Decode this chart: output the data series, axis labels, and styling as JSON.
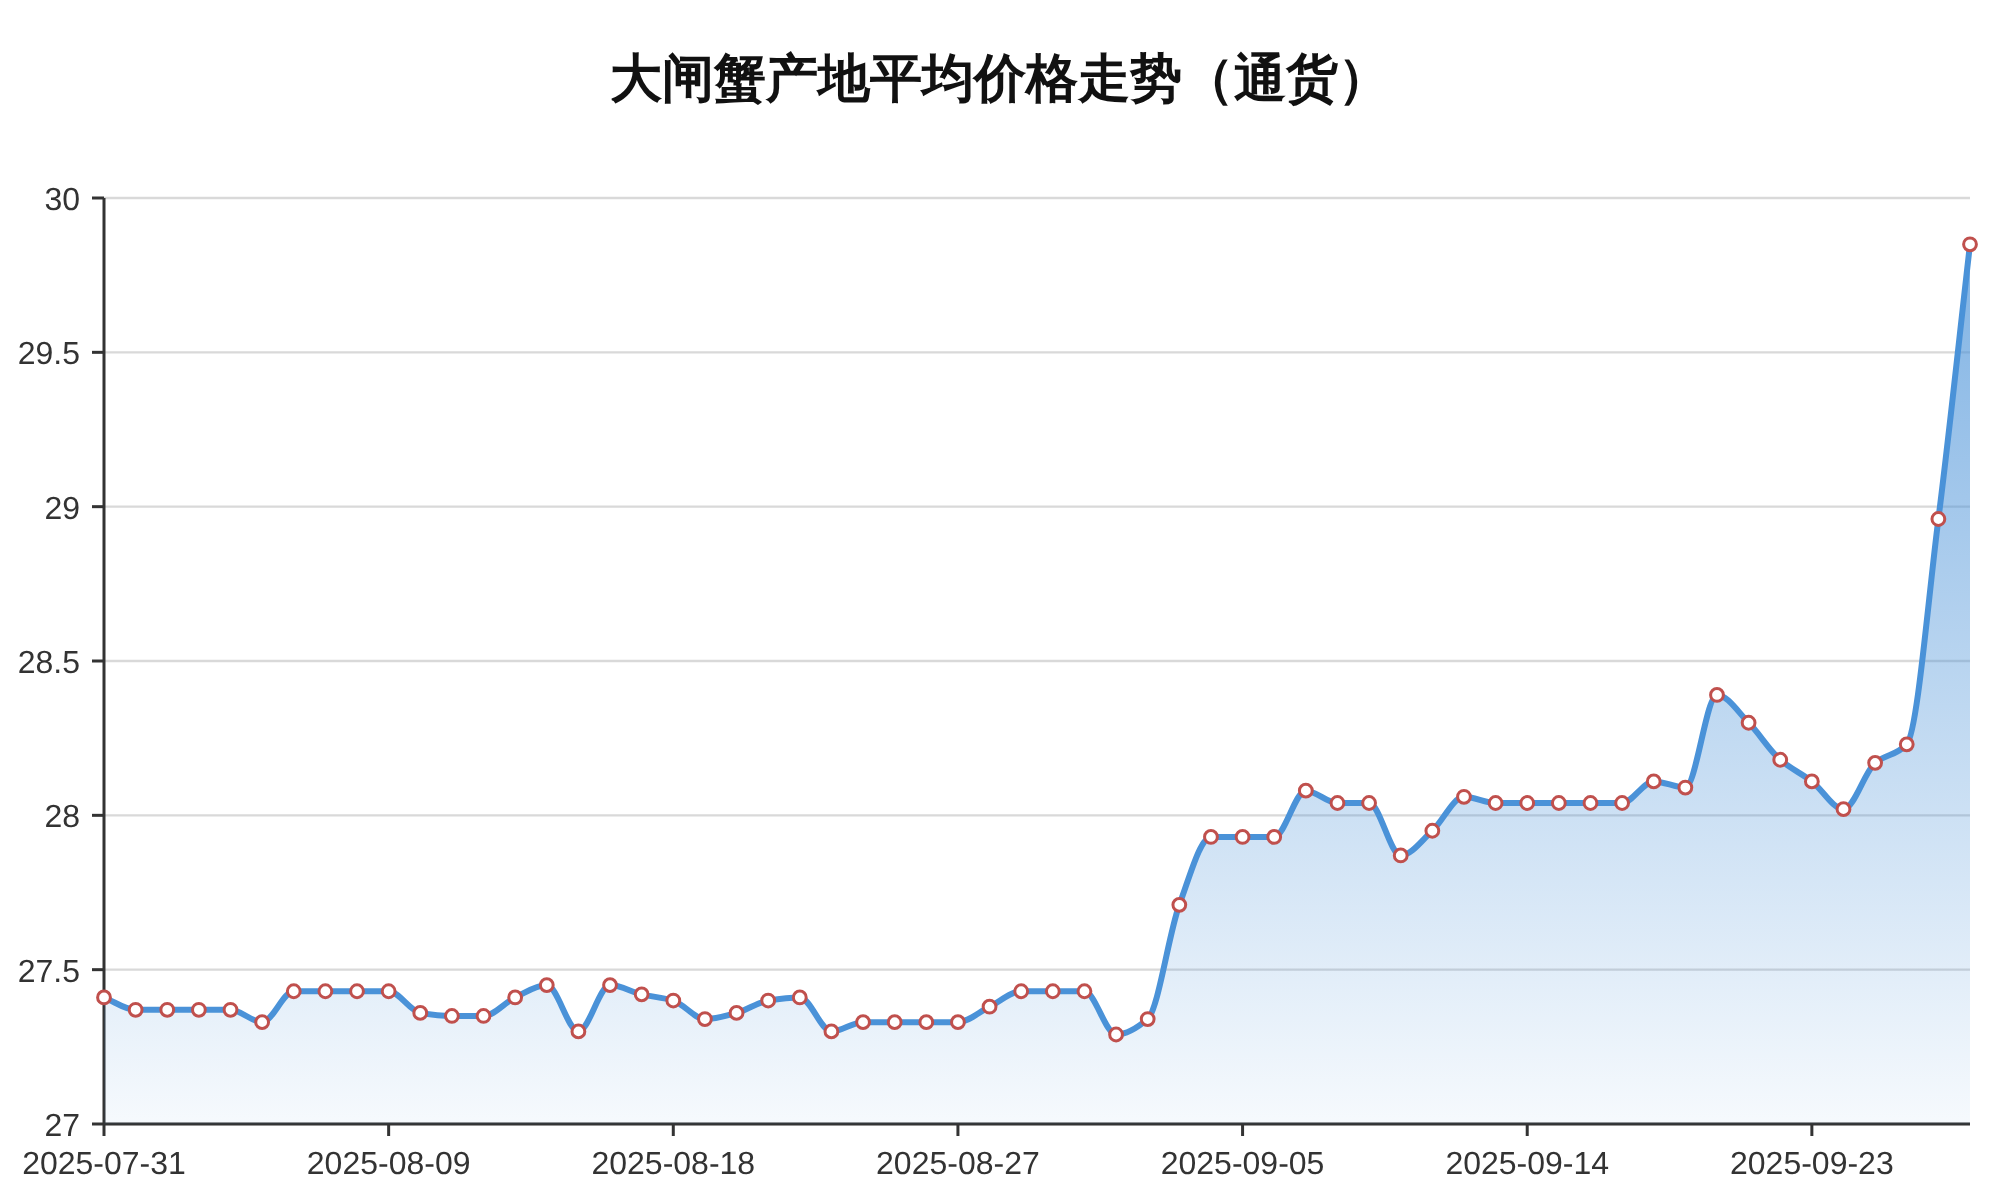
{
  "chart_data": {
    "type": "area",
    "title": "大闸蟹产地平均价格走势（通货）",
    "x": [
      "2025-07-31",
      "2025-08-01",
      "2025-08-02",
      "2025-08-03",
      "2025-08-04",
      "2025-08-05",
      "2025-08-06",
      "2025-08-07",
      "2025-08-08",
      "2025-08-09",
      "2025-08-10",
      "2025-08-11",
      "2025-08-12",
      "2025-08-13",
      "2025-08-14",
      "2025-08-15",
      "2025-08-16",
      "2025-08-17",
      "2025-08-18",
      "2025-08-19",
      "2025-08-20",
      "2025-08-21",
      "2025-08-22",
      "2025-08-23",
      "2025-08-24",
      "2025-08-25",
      "2025-08-26",
      "2025-08-27",
      "2025-08-28",
      "2025-08-29",
      "2025-08-30",
      "2025-08-31",
      "2025-09-01",
      "2025-09-02",
      "2025-09-03",
      "2025-09-04",
      "2025-09-05",
      "2025-09-06",
      "2025-09-07",
      "2025-09-08",
      "2025-09-09",
      "2025-09-10",
      "2025-09-11",
      "2025-09-12",
      "2025-09-13",
      "2025-09-14",
      "2025-09-15",
      "2025-09-16",
      "2025-09-17",
      "2025-09-18",
      "2025-09-19",
      "2025-09-20",
      "2025-09-21",
      "2025-09-22",
      "2025-09-23",
      "2025-09-24",
      "2025-09-25",
      "2025-09-26",
      "2025-09-27",
      "2025-09-28"
    ],
    "series": [
      {
        "color": "#4a92d8",
        "values": [
          27.41,
          27.37,
          27.37,
          27.37,
          27.37,
          27.33,
          27.43,
          27.43,
          27.43,
          27.43,
          27.36,
          27.35,
          27.35,
          27.41,
          27.45,
          27.3,
          27.45,
          27.42,
          27.4,
          27.34,
          27.36,
          27.4,
          27.41,
          27.3,
          27.33,
          27.33,
          27.33,
          27.33,
          27.38,
          27.43,
          27.43,
          27.43,
          27.29,
          27.34,
          27.71,
          27.93,
          27.93,
          27.93,
          28.08,
          28.04,
          28.04,
          27.87,
          27.95,
          28.06,
          28.04,
          28.04,
          28.04,
          28.04,
          28.04,
          28.11,
          28.09,
          28.39,
          28.3,
          28.18,
          28.11,
          28.02,
          28.17,
          28.23,
          28.96,
          29.85
        ]
      }
    ],
    "xlim": [
      "2025-07-31",
      "2025-09-28"
    ],
    "xticks": [
      {
        "value": "2025-07-31",
        "label": "2025-07-31"
      },
      {
        "value": "2025-08-09",
        "label": "2025-08-09"
      },
      {
        "value": "2025-08-18",
        "label": "2025-08-18"
      },
      {
        "value": "2025-08-27",
        "label": "2025-08-27"
      },
      {
        "value": "2025-09-05",
        "label": "2025-09-05"
      },
      {
        "value": "2025-09-14",
        "label": "2025-09-14"
      },
      {
        "value": "2025-09-23",
        "label": "2025-09-23"
      }
    ],
    "ylim": [
      27,
      30
    ],
    "yticks": [
      27,
      27.5,
      28,
      28.5,
      29,
      29.5,
      30
    ],
    "grid": "y",
    "marker": "circle"
  }
}
